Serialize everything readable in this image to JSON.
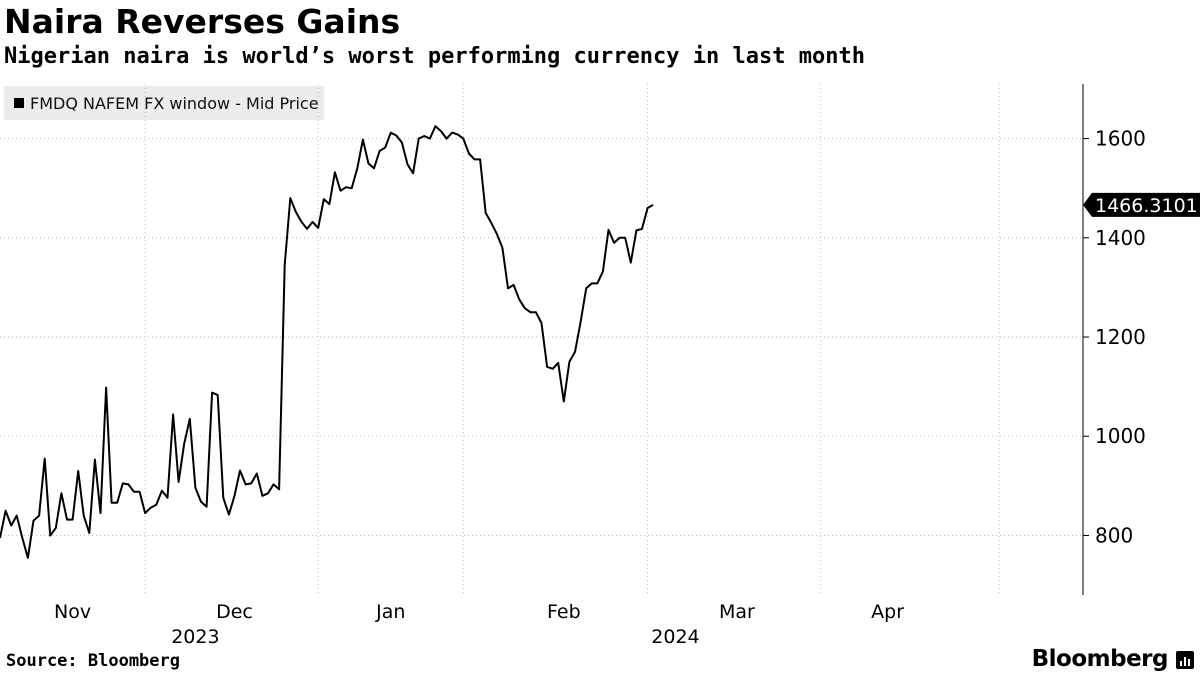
{
  "title": "Naira Reverses Gains",
  "subtitle": "Nigerian naira is world’s worst performing currency in last month",
  "legend_label": "FMDQ NAFEM FX window - Mid Price",
  "source": "Source: Bloomberg",
  "brand": "Bloomberg",
  "brand_icon": "bloomberg-terminal-icon",
  "colors": {
    "line": "#000000",
    "grid": "#bdbdbd",
    "legend_bg": "#ececec"
  },
  "chart_data": {
    "type": "line",
    "title": "Naira Reverses Gains",
    "series": [
      {
        "name": "FMDQ NAFEM FX window - Mid Price",
        "values": [
          795,
          850,
          820,
          840,
          795,
          755,
          830,
          840,
          955,
          800,
          815,
          885,
          832,
          832,
          930,
          840,
          805,
          953,
          845,
          1098,
          866,
          866,
          905,
          903,
          888,
          888,
          845,
          856,
          862,
          890,
          876,
          1044,
          908,
          985,
          1035,
          896,
          868,
          858,
          1088,
          1083,
          876,
          842,
          880,
          931,
          903,
          905,
          925,
          880,
          885,
          903,
          893,
          1345,
          1480,
          1452,
          1432,
          1418,
          1432,
          1420,
          1478,
          1468,
          1532,
          1495,
          1502,
          1500,
          1540,
          1598,
          1550,
          1540,
          1575,
          1582,
          1612,
          1606,
          1592,
          1548,
          1530,
          1600,
          1605,
          1600,
          1625,
          1615,
          1600,
          1612,
          1608,
          1600,
          1570,
          1558,
          1558,
          1450,
          1430,
          1408,
          1380,
          1298,
          1305,
          1276,
          1258,
          1250,
          1250,
          1228,
          1140,
          1136,
          1148,
          1070,
          1150,
          1170,
          1230,
          1298,
          1308,
          1308,
          1332,
          1416,
          1390,
          1400,
          1400,
          1350,
          1415,
          1418,
          1460,
          1466.3101
        ]
      }
    ],
    "last_value_label": "1466.3101",
    "y_ticks": [
      800,
      1000,
      1200,
      1400,
      1600
    ],
    "ylim": [
      680,
      1710
    ],
    "x_ticks": [
      {
        "label": "Nov",
        "index": 13
      },
      {
        "label": "Dec",
        "index": 42
      },
      {
        "label": "Jan",
        "index": 70
      },
      {
        "label": "Feb",
        "index": 101
      },
      {
        "label": "Mar",
        "index": 132
      },
      {
        "label": "Apr",
        "index": 159
      }
    ],
    "x_gridlines_index": [
      26,
      57,
      83,
      116,
      147,
      179
    ],
    "x_total_slots": 194,
    "year_labels": [
      {
        "label": "2023",
        "index": 35
      },
      {
        "label": "2024",
        "index": 121
      }
    ],
    "xlabel": "",
    "ylabel": "",
    "grid": true
  }
}
